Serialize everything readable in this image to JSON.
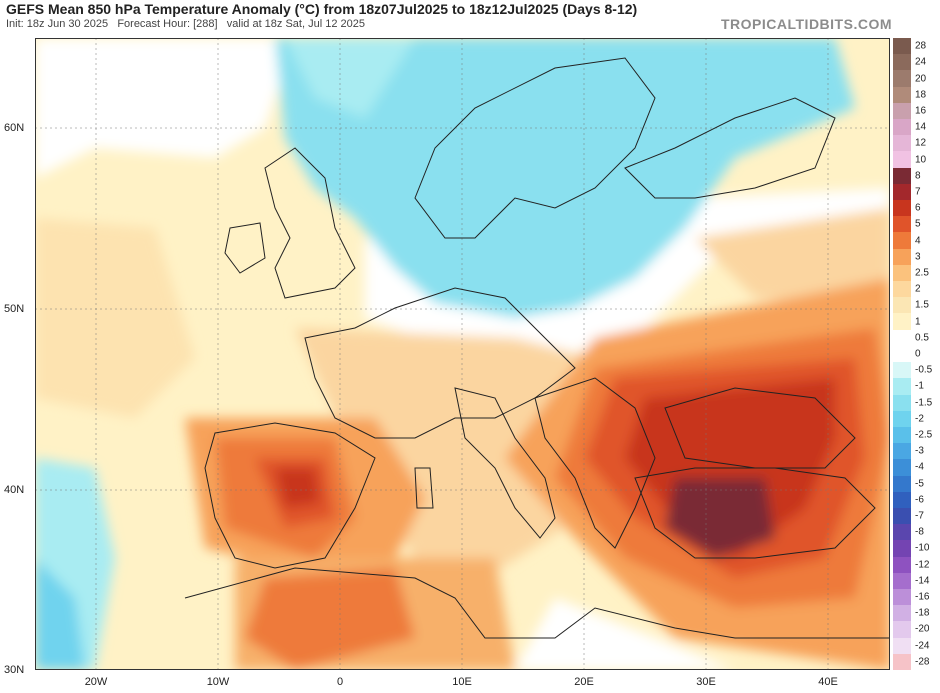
{
  "header": {
    "title": "GEFS Mean 850 hPa Temperature Anomaly (°C) from 18z07Jul2025 to 18z12Jul2025 (Days 8-12)",
    "init": "Init: 18z Jun 30 2025",
    "forecast_hour": "Forecast Hour: [288]",
    "valid": "valid at 18z Sat, Jul 12 2025"
  },
  "brand": "TROPICALTIDBITS.COM",
  "axes": {
    "lat_labels": [
      "60N",
      "50N",
      "40N",
      "30N"
    ],
    "lon_labels": [
      "20W",
      "10W",
      "0",
      "10E",
      "20E",
      "30E",
      "40E"
    ]
  },
  "colorbar": {
    "levels": [
      "28",
      "24",
      "20",
      "18",
      "16",
      "14",
      "12",
      "10",
      "8",
      "7",
      "6",
      "5",
      "4",
      "3",
      "2.5",
      "2",
      "1.5",
      "1",
      "0.5",
      "0",
      "-0.5",
      "-1",
      "-1.5",
      "-2",
      "-2.5",
      "-3",
      "-4",
      "-5",
      "-6",
      "-7",
      "-8",
      "-10",
      "-12",
      "-14",
      "-16",
      "-18",
      "-20",
      "-24",
      "-28"
    ],
    "colors": [
      "#7a5a4e",
      "#8b6a5c",
      "#9c7b6d",
      "#b08b7a",
      "#c9a0ad",
      "#d9a6c7",
      "#e5b6d7",
      "#f1c2e3",
      "#7a2a34",
      "#a3282c",
      "#c8351e",
      "#e0542a",
      "#ee7a3a",
      "#f7a25a",
      "#fbc27d",
      "#fdd89e",
      "#fbe6b4",
      "#fff2c6",
      "#ffffff",
      "#ffffff",
      "#d8f7f7",
      "#a9ecf2",
      "#8ae0ef",
      "#6fd3ee",
      "#5ac0ea",
      "#4aa7e3",
      "#3c8fd8",
      "#3478cc",
      "#3060be",
      "#3a4fb0",
      "#5a46ae",
      "#7444b2",
      "#8e52c0",
      "#a56ecd",
      "#bc8fd9",
      "#d1b0e4",
      "#e3c9ed",
      "#f0dff3",
      "#f6c3c8"
    ]
  },
  "regions": {
    "cold_anomaly": "Northern Europe / Scandinavia",
    "warm_anomaly": "Iberia, Balkans, Turkey, North Africa"
  }
}
